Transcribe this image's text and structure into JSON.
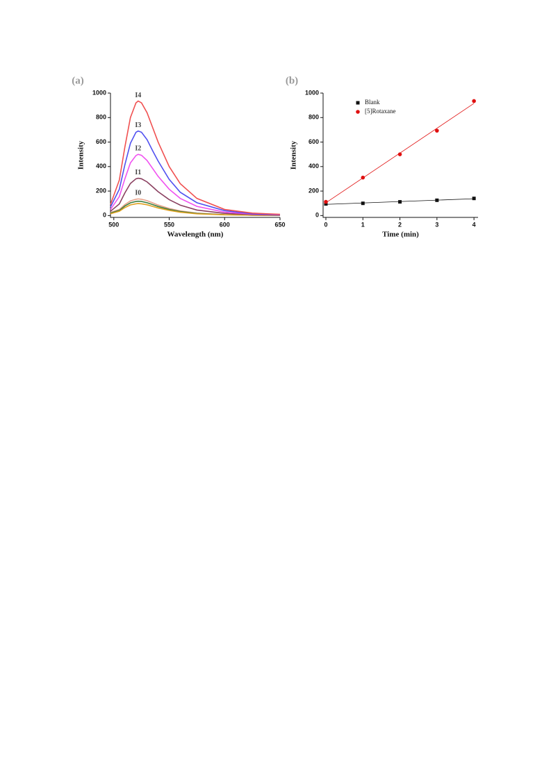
{
  "chart_data": [
    {
      "type": "line",
      "panel": "(a)",
      "x_label": "Wavelength (nm)",
      "y_label": "Intensity",
      "x": [
        497,
        505,
        510,
        515,
        520,
        522,
        525,
        530,
        535,
        540,
        550,
        560,
        575,
        600,
        625,
        650
      ],
      "xlim": [
        497,
        650
      ],
      "xticks": [
        500,
        550,
        600,
        650
      ],
      "ylim": [
        -15,
        1000
      ],
      "yticks": [
        0,
        200,
        400,
        600,
        800,
        1000
      ],
      "series": [
        {
          "color": "#e8a088",
          "values": [
            25,
            50,
            90,
            120,
            133,
            136,
            133,
            122,
            104,
            86,
            58,
            38,
            20,
            8,
            4,
            2
          ]
        },
        {
          "color": "#3f7f3f",
          "values": [
            20,
            42,
            78,
            104,
            115,
            117,
            115,
            105,
            90,
            74,
            50,
            33,
            17,
            7,
            3,
            2
          ]
        },
        {
          "color": "#e0a020",
          "values": [
            15,
            35,
            65,
            87,
            96,
            98,
            96,
            88,
            75,
            62,
            42,
            27,
            14,
            6,
            3,
            2
          ]
        },
        {
          "name": "I1",
          "color": "#8a4060",
          "values": [
            35,
            95,
            185,
            262,
            300,
            305,
            300,
            275,
            235,
            195,
            130,
            85,
            45,
            18,
            8,
            4
          ]
        },
        {
          "name": "I2",
          "color": "#f050f0",
          "values": [
            50,
            155,
            300,
            430,
            490,
            500,
            492,
            450,
            385,
            320,
            215,
            140,
            75,
            28,
            12,
            6
          ]
        },
        {
          "name": "I3",
          "color": "#5050f0",
          "values": [
            70,
            215,
            415,
            590,
            680,
            690,
            680,
            620,
            530,
            445,
            295,
            190,
            105,
            40,
            15,
            8
          ]
        },
        {
          "name": "I4",
          "color": "#f05050",
          "values": [
            90,
            290,
            560,
            800,
            920,
            935,
            920,
            840,
            720,
            600,
            400,
            260,
            140,
            50,
            20,
            10
          ]
        }
      ],
      "annotations": [
        "I0"
      ]
    },
    {
      "type": "scatter",
      "panel": "(b)",
      "x_label": "Time (min)",
      "y_label": "Intensity",
      "x": [
        0,
        1,
        2,
        3,
        4
      ],
      "xlim": [
        -0.075,
        4.11
      ],
      "xticks": [
        0,
        1,
        2,
        3,
        4
      ],
      "ylim": [
        -15,
        1000
      ],
      "yticks": [
        0,
        200,
        400,
        600,
        800,
        1000
      ],
      "legend": "top-left",
      "fit": "linear",
      "series": [
        {
          "name": "Blank",
          "color": "#111111",
          "marker": "square",
          "values": [
            95,
            100,
            112,
            125,
            140
          ]
        },
        {
          "name": "[5]Rotaxane",
          "color": "#e01010",
          "marker": "circle",
          "values": [
            112,
            310,
            500,
            693,
            935
          ]
        }
      ]
    }
  ]
}
